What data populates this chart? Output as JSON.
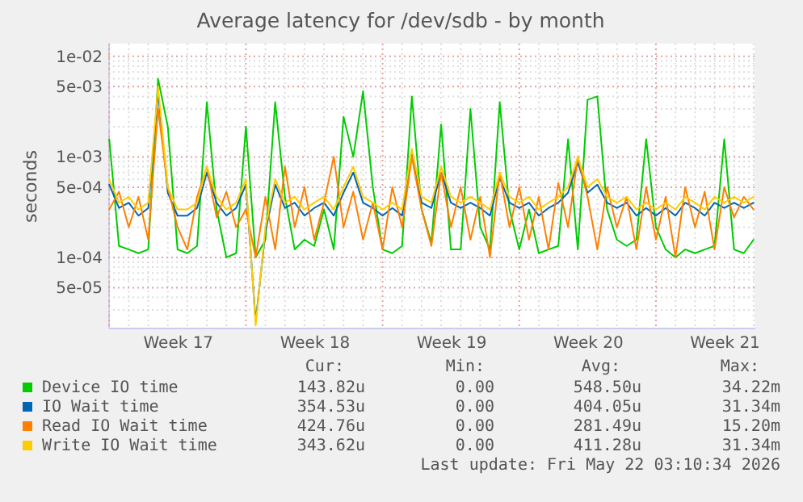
{
  "chart_data": {
    "type": "line",
    "title": "Average latency for /dev/sdb - by month",
    "ylabel": "seconds",
    "log": true,
    "grid": true,
    "legend": "bottom",
    "marker": "none",
    "line_style": "solid",
    "ylim": [
      2e-05,
      0.0134
    ],
    "yticks": [
      {
        "value": 0.01,
        "label": "1e-02"
      },
      {
        "value": 0.005,
        "label": "5e-03"
      },
      {
        "value": 0.001,
        "label": "1e-03"
      },
      {
        "value": 0.0005,
        "label": "5e-04"
      },
      {
        "value": 0.0001,
        "label": "1e-04"
      },
      {
        "value": 5e-05,
        "label": "5e-05"
      },
      {
        "value": 3e-05,
        "label": null
      },
      {
        "value": 4e-05,
        "label": null
      },
      {
        "value": 6e-05,
        "label": null
      },
      {
        "value": 7e-05,
        "label": null
      },
      {
        "value": 8e-05,
        "label": null
      },
      {
        "value": 9e-05,
        "label": null
      },
      {
        "value": 0.0002,
        "label": null
      },
      {
        "value": 0.0003,
        "label": null
      },
      {
        "value": 0.0004,
        "label": null
      },
      {
        "value": 0.0006,
        "label": null
      },
      {
        "value": 0.0007,
        "label": null
      },
      {
        "value": 0.0008,
        "label": null
      },
      {
        "value": 0.0009,
        "label": null
      },
      {
        "value": 0.002,
        "label": null
      },
      {
        "value": 0.003,
        "label": null
      },
      {
        "value": 0.004,
        "label": null
      },
      {
        "value": 0.006,
        "label": null
      },
      {
        "value": 0.007,
        "label": null
      },
      {
        "value": 0.008,
        "label": null
      },
      {
        "value": 0.009,
        "label": null
      }
    ],
    "categories": [
      null,
      null,
      null,
      null,
      null,
      null,
      null,
      "Week 17",
      null,
      null,
      null,
      null,
      null,
      null,
      null,
      null,
      null,
      null,
      null,
      null,
      null,
      "Week 18",
      null,
      null,
      null,
      null,
      null,
      null,
      null,
      null,
      null,
      null,
      null,
      null,
      null,
      "Week 19",
      null,
      null,
      null,
      null,
      null,
      null,
      null,
      null,
      null,
      null,
      null,
      null,
      null,
      "Week 20",
      null,
      null,
      null,
      null,
      null,
      null,
      null,
      null,
      null,
      null,
      null,
      null,
      null,
      "Week 21",
      null,
      null,
      null
    ],
    "series": [
      {
        "name": "Device IO time",
        "color": "#00cc00",
        "values": [
          0.0015,
          0.00013,
          0.00012,
          0.00011,
          0.00012,
          0.006,
          0.002,
          0.00012,
          0.00011,
          0.00013,
          0.0035,
          0.0003,
          0.0001,
          0.00011,
          0.002,
          0.0001,
          0.00015,
          0.0035,
          0.0004,
          0.00012,
          0.00015,
          0.00013,
          0.0003,
          0.00012,
          0.0025,
          0.001,
          0.0045,
          0.0005,
          0.00012,
          0.00011,
          0.00013,
          0.004,
          0.0003,
          0.00014,
          0.0021,
          0.00012,
          0.00012,
          0.003,
          0.0002,
          0.00012,
          0.0035,
          0.0003,
          0.00012,
          0.0003,
          0.00011,
          0.00012,
          0.00013,
          0.0015,
          0.00012,
          0.0037,
          0.004,
          0.0003,
          0.00015,
          0.00013,
          0.00015,
          0.0015,
          0.0002,
          0.00012,
          0.0001,
          0.00012,
          0.00011,
          0.00012,
          0.00013,
          0.0015,
          0.00012,
          0.00011,
          0.00015
        ]
      },
      {
        "name": "IO Wait time",
        "color": "#0066b3",
        "values": [
          0.00053,
          0.00031,
          0.00035,
          0.00026,
          0.00031,
          0.0044,
          0.00044,
          0.00026,
          0.00026,
          0.00031,
          0.0007,
          0.00035,
          0.00026,
          0.00031,
          0.00053,
          2.3e-05,
          0.00018,
          0.00053,
          0.00031,
          0.00035,
          0.00026,
          0.00031,
          0.00035,
          0.00026,
          0.00044,
          0.0007,
          0.00035,
          0.00031,
          0.00026,
          0.00031,
          0.00026,
          0.00105,
          0.00035,
          0.00031,
          0.0007,
          0.00035,
          0.00031,
          0.00035,
          0.00031,
          0.00026,
          0.00062,
          0.00035,
          0.00031,
          0.00035,
          0.00026,
          0.00031,
          0.00035,
          0.00044,
          0.00088,
          0.00044,
          0.00053,
          0.00035,
          0.00031,
          0.00035,
          0.00026,
          0.00031,
          0.00026,
          0.00031,
          0.00026,
          0.00035,
          0.00031,
          0.00026,
          0.00035,
          0.00031,
          0.00035,
          0.00031,
          0.00035
        ]
      },
      {
        "name": "Read IO Wait time",
        "color": "#ff8000",
        "values": [
          0.0003,
          0.00045,
          0.0002,
          0.0004,
          0.00015,
          0.003,
          0.0005,
          0.0002,
          0.00012,
          0.0004,
          0.0008,
          0.00025,
          0.00045,
          0.0002,
          0.0003,
          0.0001,
          0.0004,
          0.00012,
          0.0008,
          0.0002,
          0.0005,
          0.00015,
          0.00035,
          0.001,
          0.0002,
          0.00045,
          0.00015,
          0.00035,
          0.00012,
          0.0005,
          0.0002,
          0.001,
          0.0003,
          0.00013,
          0.0007,
          0.0002,
          0.0005,
          0.00015,
          0.0004,
          0.0001,
          0.0007,
          0.0002,
          0.0005,
          0.00015,
          0.0004,
          0.00012,
          0.00055,
          0.0002,
          0.001,
          0.0004,
          0.00012,
          0.0005,
          0.0002,
          0.0004,
          0.00012,
          0.0005,
          0.00015,
          0.0004,
          0.0001,
          0.0005,
          0.0002,
          0.00045,
          0.00012,
          0.0005,
          0.00025,
          0.0004,
          0.0003
        ]
      },
      {
        "name": "Write IO Wait time",
        "color": "#ffcc00",
        "values": [
          0.0006,
          0.00035,
          0.0004,
          0.0003,
          0.00035,
          0.005,
          0.0005,
          0.0003,
          0.0003,
          0.00035,
          0.0008,
          0.0004,
          0.0003,
          0.00035,
          0.0006,
          2.1e-05,
          0.0002,
          0.0006,
          0.00035,
          0.0004,
          0.0003,
          0.00035,
          0.0004,
          0.0003,
          0.0005,
          0.0008,
          0.0004,
          0.00035,
          0.0003,
          0.00035,
          0.0003,
          0.0012,
          0.0004,
          0.00035,
          0.0008,
          0.0004,
          0.00035,
          0.0004,
          0.00035,
          0.0003,
          0.0007,
          0.0004,
          0.00035,
          0.0004,
          0.0003,
          0.00035,
          0.0004,
          0.0005,
          0.001,
          0.0005,
          0.0006,
          0.0004,
          0.00035,
          0.0004,
          0.0003,
          0.00035,
          0.0003,
          0.00035,
          0.0003,
          0.0004,
          0.00035,
          0.0003,
          0.0004,
          0.00035,
          0.0004,
          0.00035,
          0.0004
        ]
      }
    ],
    "annotations": [
      "Cur:",
      "Min:",
      "Avg:",
      "Max:",
      "143.82u",
      "0.00",
      "548.50u",
      "34.22m",
      "354.53u",
      "0.00",
      "404.05u",
      "31.34m",
      "424.76u",
      "0.00",
      "281.49u",
      "15.20m",
      "343.62u",
      "0.00",
      "411.28u",
      "31.34m",
      "Last update: Fri May 22 03:10:34 2026"
    ]
  }
}
